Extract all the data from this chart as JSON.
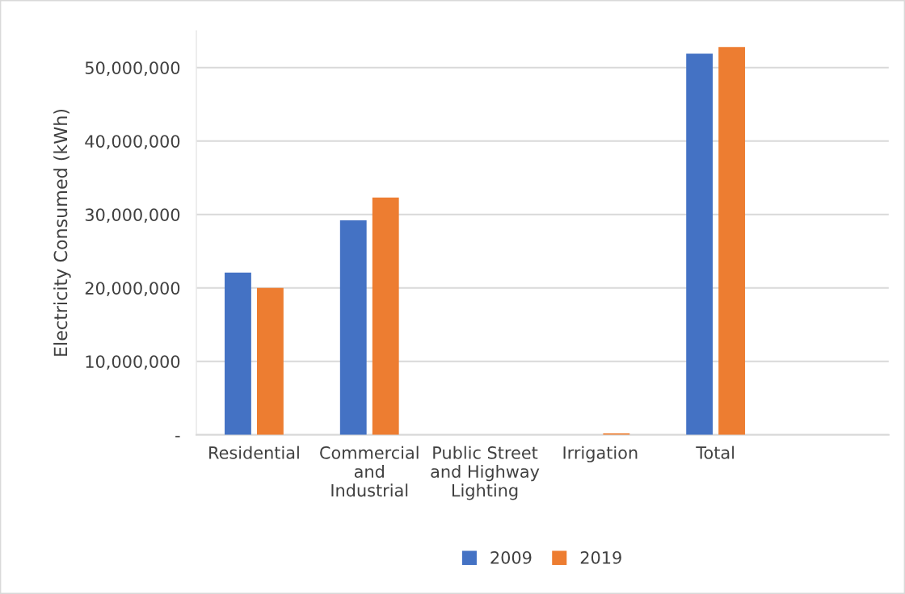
{
  "chart_data": {
    "type": "bar",
    "ylabel": "Electricity Consumed (kWh)",
    "categories": [
      "Residential",
      "Commercial\nand\nIndustrial",
      "Public Street\nand Highway\nLighting",
      "Irrigation",
      "Total",
      null
    ],
    "series": [
      {
        "name": "2009",
        "color": "#4472c4",
        "values": [
          22100000,
          29200000,
          0,
          0,
          51900000,
          null
        ]
      },
      {
        "name": "2019",
        "color": "#ed7d31",
        "values": [
          20000000,
          32300000,
          0,
          200000,
          52800000,
          null
        ]
      }
    ],
    "yticks": [
      {
        "value": 0,
        "label": "-"
      },
      {
        "value": 10000000,
        "label": "10,000,000"
      },
      {
        "value": 20000000,
        "label": "20,000,000"
      },
      {
        "value": 30000000,
        "label": "30,000,000"
      },
      {
        "value": 40000000,
        "label": "40,000,000"
      },
      {
        "value": 50000000,
        "label": "50,000,000"
      }
    ],
    "ylim": [
      0,
      55000000
    ],
    "grid": "y",
    "legend": "bottom"
  }
}
